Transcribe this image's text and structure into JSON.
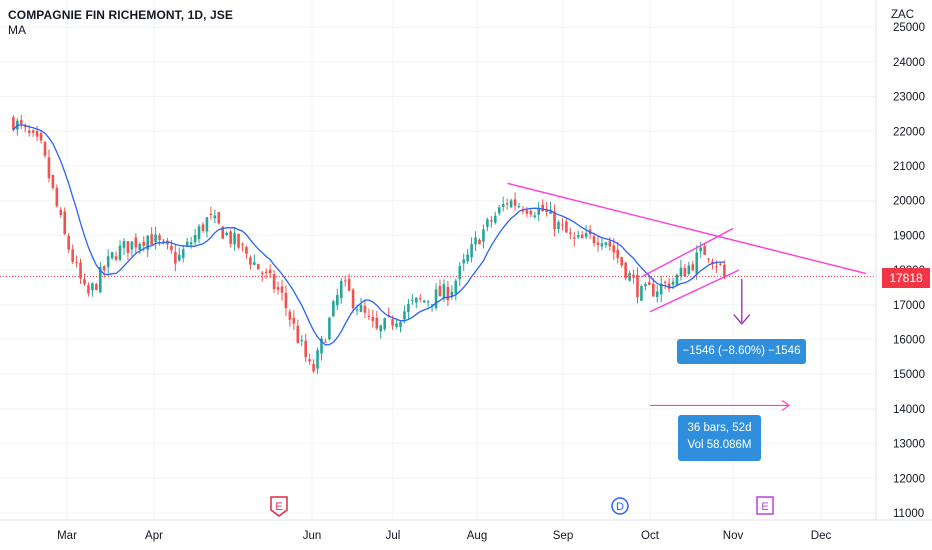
{
  "header": {
    "symbol": "COMPAGNIE FIN RICHEMONT, 1D, JSE",
    "indicator": "MA"
  },
  "price_axis": {
    "currency": "ZAC",
    "current_price_label": "17818",
    "current_price_color": "#f23645"
  },
  "annotations": {
    "price_change_label": "−1546 (−8.60%) −1546",
    "bars_label": "36 bars, 52d",
    "volume_label": "Vol 58.086M"
  },
  "events": [
    {
      "label": "E",
      "kind": "earnings",
      "color": "#e0294a",
      "date": "Jun"
    },
    {
      "label": "D",
      "kind": "dividend",
      "color": "#2962ff",
      "date": "Oct"
    },
    {
      "label": "E",
      "kind": "earnings",
      "color": "#c03fe0",
      "date": "Nov"
    }
  ],
  "colors": {
    "up": "#26a69a",
    "down": "#ef5350",
    "ma": "#2962ff",
    "trendline": "#ff3dd5",
    "projection": "#9c27b0",
    "box": "#2f8fdc"
  },
  "chart_data": {
    "type": "candlestick",
    "symbol": "COMPAGNIE FIN RICHEMONT",
    "interval": "1D",
    "exchange": "JSE",
    "x_tick_labels": [
      "Mar",
      "Apr",
      "Jun",
      "Jul",
      "Aug",
      "Sep",
      "Oct",
      "Nov",
      "Dec"
    ],
    "y_tick_labels": [
      25000,
      24000,
      23000,
      22000,
      21000,
      20000,
      19000,
      18000,
      17000,
      16000,
      15000,
      14000,
      13000,
      12000,
      11000
    ],
    "ylim": [
      10800,
      25300
    ],
    "current_price": 17818,
    "close_path": [
      {
        "date": "Feb 10",
        "close": 22300
      },
      {
        "date": "Feb 20",
        "close": 21500
      },
      {
        "date": "Feb 28",
        "close": 19000
      },
      {
        "date": "Mar 8",
        "close": 17200
      },
      {
        "date": "Mar 18",
        "close": 18500
      },
      {
        "date": "Mar 30",
        "close": 19000
      },
      {
        "date": "Apr 10",
        "close": 18300
      },
      {
        "date": "Apr 22",
        "close": 19500
      },
      {
        "date": "May 5",
        "close": 18600
      },
      {
        "date": "May 20",
        "close": 17300
      },
      {
        "date": "Jun 1",
        "close": 15000
      },
      {
        "date": "Jun 12",
        "close": 17600
      },
      {
        "date": "Jun 25",
        "close": 16200
      },
      {
        "date": "Jul 8",
        "close": 17000
      },
      {
        "date": "Jul 22",
        "close": 17400
      },
      {
        "date": "Aug 2",
        "close": 19000
      },
      {
        "date": "Aug 12",
        "close": 20000
      },
      {
        "date": "Aug 25",
        "close": 19700
      },
      {
        "date": "Sep 5",
        "close": 18800
      },
      {
        "date": "Sep 15",
        "close": 19000
      },
      {
        "date": "Sep 28",
        "close": 17300
      },
      {
        "date": "Oct 10",
        "close": 17700
      },
      {
        "date": "Oct 22",
        "close": 18600
      },
      {
        "date": "Oct 30",
        "close": 17818
      }
    ],
    "series": [
      {
        "name": "MA"
      }
    ],
    "price_range_measure": {
      "change": -1546,
      "percent": -8.6
    },
    "date_range_measure": {
      "bars": 36,
      "days": 52,
      "volume": "58.086M"
    }
  }
}
